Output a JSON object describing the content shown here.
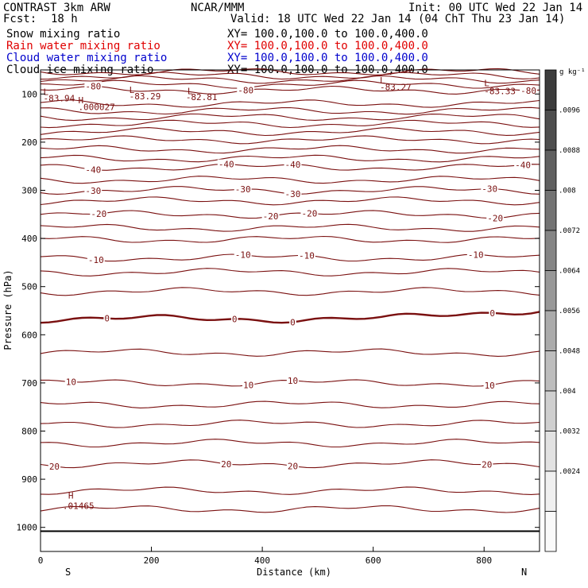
{
  "header": {
    "model": "CONTRAST  3km ARW",
    "center": "NCAR/MMM",
    "init": "Init: 00 UTC Wed 22 Jan 14",
    "fcst_label": "Fcst:",
    "fcst_value": "18 h",
    "valid": "Valid: 18 UTC Wed 22 Jan 14 (04 ChT Thu 23 Jan 14)"
  },
  "fields": [
    {
      "name": "Snow mixing ratio",
      "xy": "XY= 100.0,100.0 to 100.0,400.0",
      "color": "#000000"
    },
    {
      "name": "Rain water mixing ratio",
      "xy": "XY= 100.0,100.0 to 100.0,400.0",
      "color": "#e00000"
    },
    {
      "name": "Cloud water mixing ratio",
      "xy": "XY= 100.0,100.0 to 100.0,400.0",
      "color": "#0000cc"
    },
    {
      "name": "Cloud ice mixing ratio",
      "xy": "XY= 100.0,100.0 to 100.0,400.0",
      "color": "#000000"
    }
  ],
  "chart_data": {
    "type": "cross-section-contour",
    "xlabel": "Distance (km)",
    "ylabel": "Pressure (hPa)",
    "xlim": [
      0,
      900
    ],
    "ylim": [
      1050,
      50
    ],
    "xticks": [
      0,
      200,
      400,
      600,
      800
    ],
    "yticks": [
      100,
      200,
      300,
      400,
      500,
      600,
      700,
      800,
      900,
      1000
    ],
    "endpoint_left": "S",
    "endpoint_right": "N",
    "surface_pressure": 1008,
    "contour_color": "#7a1010",
    "contours": [
      {
        "p": 54,
        "bold": false,
        "labels": []
      },
      {
        "p": 62,
        "bold": false,
        "labels": []
      },
      {
        "p": 70,
        "bold": false,
        "labels": []
      },
      {
        "p": 80,
        "bold": false,
        "labels": []
      },
      {
        "p": 92,
        "bold": false,
        "labels": [
          {
            "x": 95,
            "text": "-80"
          },
          {
            "x": 370,
            "text": "-80"
          },
          {
            "x": 880,
            "text": "-80"
          }
        ]
      },
      {
        "p": 120,
        "bold": false,
        "labels": []
      },
      {
        "p": 135,
        "bold": false,
        "labels": []
      },
      {
        "p": 148,
        "bold": false,
        "labels": []
      },
      {
        "p": 162,
        "bold": false,
        "labels": []
      },
      {
        "p": 178,
        "bold": false,
        "labels": []
      },
      {
        "p": 195,
        "bold": false,
        "labels": []
      },
      {
        "p": 215,
        "bold": false,
        "labels": []
      },
      {
        "p": 234,
        "bold": false,
        "labels": []
      },
      {
        "p": 252,
        "bold": false,
        "labels": [
          {
            "x": 95,
            "text": "-40"
          },
          {
            "x": 335,
            "text": "-40"
          },
          {
            "x": 455,
            "text": "-40"
          },
          {
            "x": 870,
            "text": "-40"
          }
        ]
      },
      {
        "p": 278,
        "bold": false,
        "labels": []
      },
      {
        "p": 300,
        "bold": false,
        "labels": [
          {
            "x": 95,
            "text": "-30"
          },
          {
            "x": 365,
            "text": "-30"
          },
          {
            "x": 455,
            "text": "-30"
          },
          {
            "x": 810,
            "text": "-30"
          }
        ]
      },
      {
        "p": 322,
        "bold": false,
        "labels": []
      },
      {
        "p": 350,
        "bold": false,
        "labels": [
          {
            "x": 105,
            "text": "-20"
          },
          {
            "x": 415,
            "text": "-20"
          },
          {
            "x": 485,
            "text": "-20"
          },
          {
            "x": 820,
            "text": "-20"
          }
        ]
      },
      {
        "p": 378,
        "bold": false,
        "labels": []
      },
      {
        "p": 402,
        "bold": false,
        "labels": []
      },
      {
        "p": 440,
        "bold": false,
        "labels": [
          {
            "x": 100,
            "text": "-10"
          },
          {
            "x": 365,
            "text": "-10"
          },
          {
            "x": 480,
            "text": "-10"
          },
          {
            "x": 785,
            "text": "-10"
          }
        ]
      },
      {
        "p": 470,
        "bold": false,
        "labels": []
      },
      {
        "p": 510,
        "bold": false,
        "labels": []
      },
      {
        "p": 567,
        "bold": true,
        "labels": [
          {
            "x": 120,
            "text": "0"
          },
          {
            "x": 350,
            "text": "0"
          },
          {
            "x": 455,
            "text": "0"
          },
          {
            "x": 815,
            "text": "0"
          }
        ]
      },
      {
        "p": 637,
        "bold": false,
        "labels": []
      },
      {
        "p": 700,
        "bold": false,
        "labels": [
          {
            "x": 55,
            "text": "10"
          },
          {
            "x": 375,
            "text": "10"
          },
          {
            "x": 455,
            "text": "10"
          },
          {
            "x": 810,
            "text": "10"
          }
        ]
      },
      {
        "p": 745,
        "bold": false,
        "labels": []
      },
      {
        "p": 785,
        "bold": false,
        "labels": []
      },
      {
        "p": 825,
        "bold": false,
        "labels": []
      },
      {
        "p": 868,
        "bold": false,
        "labels": [
          {
            "x": 25,
            "text": "20"
          },
          {
            "x": 335,
            "text": "20"
          },
          {
            "x": 455,
            "text": "20"
          },
          {
            "x": 805,
            "text": "20"
          }
        ]
      },
      {
        "p": 924,
        "bold": false,
        "labels": []
      },
      {
        "p": 962,
        "bold": false,
        "labels": []
      }
    ],
    "annotations": [
      {
        "x": 5,
        "p": 102,
        "text": "L",
        "color": "#7a1010"
      },
      {
        "x": 5,
        "p": 115,
        "text": "-83.94",
        "color": "#7a1010"
      },
      {
        "x": 160,
        "p": 98,
        "text": "L",
        "color": "#7a1010"
      },
      {
        "x": 160,
        "p": 111,
        "text": "-83.29",
        "color": "#7a1010"
      },
      {
        "x": 265,
        "p": 100,
        "text": "L",
        "color": "#7a1010"
      },
      {
        "x": 262,
        "p": 113,
        "text": "-82.81",
        "color": "#7a1010"
      },
      {
        "x": 612,
        "p": 78,
        "text": "L",
        "color": "#7a1010"
      },
      {
        "x": 612,
        "p": 92,
        "text": "-83.27",
        "color": "#7a1010"
      },
      {
        "x": 800,
        "p": 84,
        "text": "L",
        "color": "#7a1010"
      },
      {
        "x": 800,
        "p": 100,
        "text": "-83.33",
        "color": "#7a1010"
      },
      {
        "x": 68,
        "p": 119,
        "text": "H",
        "color": "#000000"
      },
      {
        "x": 68,
        "p": 133,
        "text": ".000027",
        "color": "#000000"
      },
      {
        "x": 50,
        "p": 940,
        "text": "H",
        "color": "#0000cc"
      },
      {
        "x": 40,
        "p": 962,
        "text": ".01465",
        "color": "#0000cc"
      }
    ],
    "colorbar": {
      "unit": "g kg⁻¹",
      "labels": [
        ".0096",
        ".0088",
        ".008",
        ".0072",
        ".0064",
        ".0056",
        ".0048",
        ".004",
        ".0032",
        ".0024"
      ],
      "colors": [
        "#3c3c3c",
        "#4e4e4e",
        "#606060",
        "#737373",
        "#858585",
        "#989898",
        "#ababab",
        "#bdbdbd",
        "#cfcfcf",
        "#e2e2e2",
        "#f0f0f0",
        "#fafafa"
      ]
    }
  }
}
